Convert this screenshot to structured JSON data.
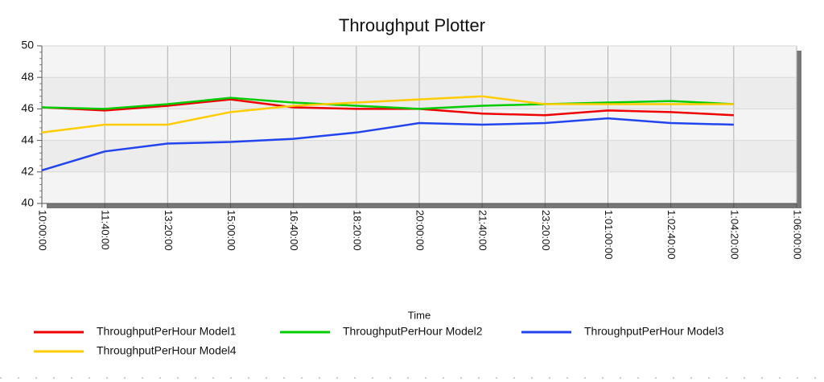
{
  "chart_data": {
    "type": "line",
    "title": "Throughput Plotter",
    "x_label": "Time",
    "categories": [
      "10:00:00",
      "11:40:00",
      "13:20:00",
      "15:00:00",
      "16:40:00",
      "18:20:00",
      "20:00:00",
      "21:40:00",
      "23:20:00",
      "1:01:00:00",
      "1:02:40:00",
      "1:04:20:00",
      "1:06:00:00"
    ],
    "series": [
      {
        "name": "ThroughputPerHour Model1",
        "color": "#ee0000",
        "values": [
          46.1,
          45.9,
          46.2,
          46.6,
          46.1,
          46.0,
          46.0,
          45.7,
          45.6,
          45.9,
          45.8,
          45.6,
          null
        ]
      },
      {
        "name": "ThroughputPerHour Model2",
        "color": "#00cc00",
        "values": [
          46.1,
          46.0,
          46.3,
          46.7,
          46.4,
          46.2,
          46.0,
          46.2,
          46.3,
          46.4,
          46.5,
          46.3,
          null
        ]
      },
      {
        "name": "ThroughputPerHour Model3",
        "color": "#2244ee",
        "values": [
          42.1,
          43.3,
          43.8,
          43.9,
          44.1,
          44.5,
          45.1,
          45.0,
          45.1,
          45.4,
          45.1,
          45.0,
          null
        ]
      },
      {
        "name": "ThroughputPerHour Model4",
        "color": "#ffcc00",
        "values": [
          44.5,
          45.0,
          45.0,
          45.8,
          46.2,
          46.4,
          46.6,
          46.8,
          46.3,
          46.3,
          46.3,
          46.3,
          null
        ]
      }
    ],
    "ylim": [
      40,
      50
    ],
    "yticks": [
      40,
      42,
      44,
      46,
      48,
      50
    ],
    "grid": true
  }
}
